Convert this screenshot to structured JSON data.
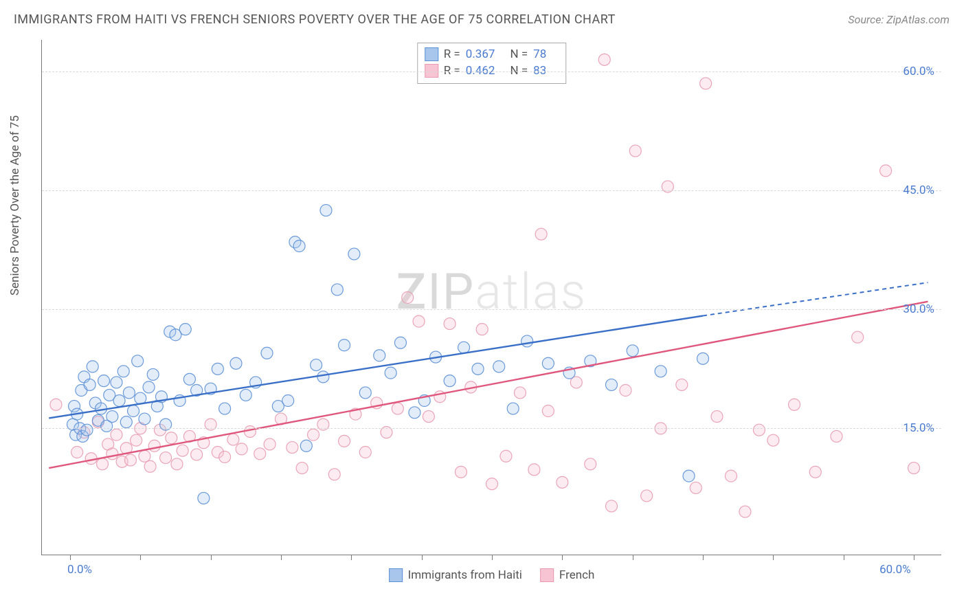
{
  "title": "IMMIGRANTS FROM HAITI VS FRENCH SENIORS POVERTY OVER THE AGE OF 75 CORRELATION CHART",
  "source": "Source: ZipAtlas.com",
  "watermark_dark": "ZIP",
  "watermark_light": "atlas",
  "y_axis_label": "Seniors Poverty Over the Age of 75",
  "chart": {
    "type": "scatter",
    "background_color": "#ffffff",
    "grid_color": "#d8d8d8",
    "axis_color": "#777777",
    "x_domain": [
      -2,
      62
    ],
    "y_domain": [
      -1,
      64
    ],
    "x_ticks": [
      0,
      5,
      10,
      15,
      20,
      25,
      30,
      35,
      40,
      45,
      50,
      55,
      60
    ],
    "x_tick_labels_shown": {
      "0": "0.0%",
      "60": "60.0%"
    },
    "y_gridlines": [
      15,
      30,
      45,
      60
    ],
    "y_tick_labels": {
      "15": "15.0%",
      "30": "30.0%",
      "45": "45.0%",
      "60": "60.0%"
    },
    "marker_radius": 8.5,
    "marker_fill_opacity": 0.32,
    "marker_stroke_opacity": 0.9,
    "marker_stroke_width": 1.2,
    "trend_line_width": 2.4,
    "trend_dash_width": 2
  },
  "series": [
    {
      "key": "blue",
      "label": "Immigrants from Haiti",
      "color_stroke": "#5b8fd6",
      "color_fill": "#a8c6ec",
      "trend_color": "#3a6fc7",
      "R": "0.367",
      "N": "78",
      "trend_solid": {
        "x1": -1.5,
        "y1": 16.3,
        "x2": 45,
        "y2": 29.2
      },
      "trend_dash": {
        "x1": 45,
        "y1": 29.2,
        "x2": 61,
        "y2": 33.4
      },
      "points": [
        [
          0.2,
          15.5
        ],
        [
          0.3,
          17.8
        ],
        [
          0.4,
          14.2
        ],
        [
          0.5,
          16.8
        ],
        [
          0.7,
          15.0
        ],
        [
          0.8,
          19.8
        ],
        [
          0.9,
          14.0
        ],
        [
          1.0,
          21.5
        ],
        [
          1.2,
          14.8
        ],
        [
          1.4,
          20.5
        ],
        [
          1.6,
          22.8
        ],
        [
          1.8,
          18.2
        ],
        [
          2.0,
          16.0
        ],
        [
          2.2,
          17.5
        ],
        [
          2.4,
          21.0
        ],
        [
          2.6,
          15.3
        ],
        [
          2.8,
          19.2
        ],
        [
          3.0,
          16.5
        ],
        [
          3.3,
          20.8
        ],
        [
          3.5,
          18.5
        ],
        [
          3.8,
          22.2
        ],
        [
          4.0,
          15.8
        ],
        [
          4.2,
          19.5
        ],
        [
          4.5,
          17.2
        ],
        [
          4.8,
          23.5
        ],
        [
          5.0,
          18.8
        ],
        [
          5.3,
          16.2
        ],
        [
          5.6,
          20.2
        ],
        [
          5.9,
          21.8
        ],
        [
          6.2,
          17.8
        ],
        [
          6.5,
          19.0
        ],
        [
          6.8,
          15.5
        ],
        [
          7.1,
          27.2
        ],
        [
          7.5,
          26.8
        ],
        [
          7.8,
          18.5
        ],
        [
          8.2,
          27.5
        ],
        [
          8.5,
          21.2
        ],
        [
          9.0,
          19.8
        ],
        [
          9.5,
          6.2
        ],
        [
          10.0,
          20.0
        ],
        [
          10.5,
          22.5
        ],
        [
          11.0,
          17.5
        ],
        [
          11.8,
          23.2
        ],
        [
          12.5,
          19.2
        ],
        [
          13.2,
          20.8
        ],
        [
          14.0,
          24.5
        ],
        [
          14.8,
          17.8
        ],
        [
          15.5,
          18.5
        ],
        [
          16.0,
          38.5
        ],
        [
          16.3,
          38.0
        ],
        [
          16.8,
          12.8
        ],
        [
          17.5,
          23.0
        ],
        [
          18.0,
          21.5
        ],
        [
          18.2,
          42.5
        ],
        [
          19.0,
          32.5
        ],
        [
          19.5,
          25.5
        ],
        [
          20.2,
          37.0
        ],
        [
          21.0,
          19.5
        ],
        [
          22.0,
          24.2
        ],
        [
          22.8,
          22.0
        ],
        [
          23.5,
          25.8
        ],
        [
          24.5,
          17.0
        ],
        [
          25.2,
          18.5
        ],
        [
          26.0,
          24.0
        ],
        [
          27.0,
          21.0
        ],
        [
          28.0,
          25.2
        ],
        [
          29.0,
          22.5
        ],
        [
          30.5,
          22.8
        ],
        [
          31.5,
          17.5
        ],
        [
          32.5,
          26.0
        ],
        [
          34.0,
          23.2
        ],
        [
          35.5,
          22.0
        ],
        [
          37.0,
          23.5
        ],
        [
          38.5,
          20.5
        ],
        [
          40.0,
          24.8
        ],
        [
          42.0,
          22.2
        ],
        [
          44.0,
          9.0
        ],
        [
          45.0,
          23.8
        ]
      ]
    },
    {
      "key": "pink",
      "label": "French",
      "color_stroke": "#e89bb0",
      "color_fill": "#f6c4d2",
      "trend_color": "#e0577d",
      "R": "0.462",
      "N": "83",
      "trend_solid": {
        "x1": -1.5,
        "y1": 10.0,
        "x2": 61,
        "y2": 31.0
      },
      "trend_dash": null,
      "points": [
        [
          -1.0,
          18.0
        ],
        [
          0.5,
          12.0
        ],
        [
          1.0,
          14.5
        ],
        [
          1.5,
          11.2
        ],
        [
          2.0,
          15.8
        ],
        [
          2.3,
          10.5
        ],
        [
          2.7,
          13.0
        ],
        [
          3.0,
          11.8
        ],
        [
          3.3,
          14.2
        ],
        [
          3.7,
          10.8
        ],
        [
          4.0,
          12.5
        ],
        [
          4.3,
          11.0
        ],
        [
          4.7,
          13.5
        ],
        [
          5.0,
          15.0
        ],
        [
          5.3,
          11.5
        ],
        [
          5.7,
          10.2
        ],
        [
          6.0,
          12.8
        ],
        [
          6.4,
          14.8
        ],
        [
          6.8,
          11.3
        ],
        [
          7.2,
          13.8
        ],
        [
          7.6,
          10.5
        ],
        [
          8.0,
          12.2
        ],
        [
          8.5,
          14.0
        ],
        [
          9.0,
          11.7
        ],
        [
          9.5,
          13.2
        ],
        [
          10.0,
          15.5
        ],
        [
          10.5,
          12.0
        ],
        [
          11.0,
          11.4
        ],
        [
          11.6,
          13.6
        ],
        [
          12.2,
          12.4
        ],
        [
          12.8,
          14.6
        ],
        [
          13.5,
          11.8
        ],
        [
          14.2,
          13.0
        ],
        [
          15.0,
          16.2
        ],
        [
          15.8,
          12.6
        ],
        [
          16.5,
          10.0
        ],
        [
          17.3,
          14.2
        ],
        [
          18.0,
          15.5
        ],
        [
          18.8,
          9.2
        ],
        [
          19.5,
          13.4
        ],
        [
          20.3,
          16.8
        ],
        [
          21.0,
          12.0
        ],
        [
          21.8,
          18.2
        ],
        [
          22.5,
          14.5
        ],
        [
          23.3,
          17.5
        ],
        [
          24.0,
          31.5
        ],
        [
          24.8,
          28.5
        ],
        [
          25.5,
          16.5
        ],
        [
          26.3,
          19.0
        ],
        [
          27.0,
          28.2
        ],
        [
          27.8,
          9.5
        ],
        [
          28.5,
          20.2
        ],
        [
          29.3,
          27.5
        ],
        [
          30.0,
          8.0
        ],
        [
          31.0,
          11.5
        ],
        [
          32.0,
          19.5
        ],
        [
          33.0,
          9.8
        ],
        [
          33.5,
          39.5
        ],
        [
          34.0,
          17.2
        ],
        [
          35.0,
          8.2
        ],
        [
          36.0,
          20.8
        ],
        [
          37.0,
          10.5
        ],
        [
          38.0,
          61.5
        ],
        [
          38.5,
          5.2
        ],
        [
          39.5,
          19.8
        ],
        [
          40.2,
          50.0
        ],
        [
          41.0,
          6.5
        ],
        [
          42.0,
          15.0
        ],
        [
          42.5,
          45.5
        ],
        [
          43.5,
          20.5
        ],
        [
          44.5,
          7.5
        ],
        [
          45.2,
          58.5
        ],
        [
          46.0,
          16.5
        ],
        [
          47.0,
          9.0
        ],
        [
          48.0,
          4.5
        ],
        [
          49.0,
          14.8
        ],
        [
          50.0,
          13.5
        ],
        [
          51.5,
          18.0
        ],
        [
          53.0,
          9.5
        ],
        [
          54.5,
          14.0
        ],
        [
          56.0,
          26.5
        ],
        [
          58.0,
          47.5
        ],
        [
          60.0,
          10.0
        ]
      ]
    }
  ]
}
